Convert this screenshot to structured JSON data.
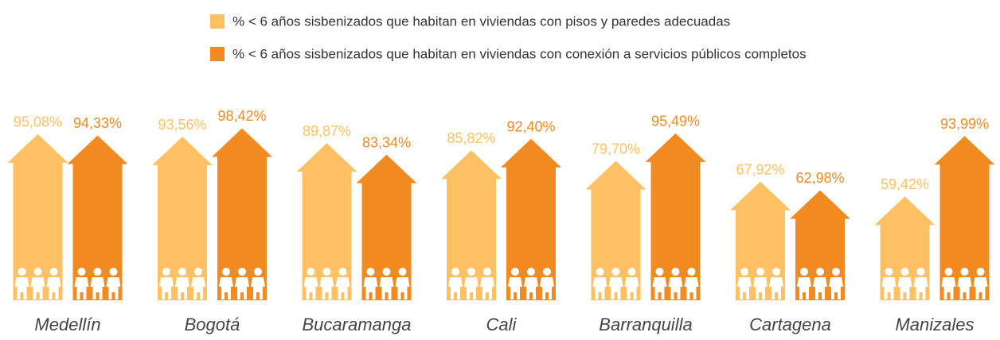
{
  "chart_data": {
    "type": "bar",
    "categories": [
      "Medellín",
      "Bogotá",
      "Bucaramanga",
      "Cali",
      "Barranquilla",
      "Cartagena",
      "Manizales"
    ],
    "series": [
      {
        "name": "% < 6 años sisbenizados que habitan en viviendas con pisos y paredes adecuadas",
        "color": "#fdc163",
        "values": [
          95.08,
          93.56,
          89.87,
          85.82,
          79.7,
          67.92,
          59.42
        ],
        "value_labels": [
          "95,08%",
          "93,56%",
          "89,87%",
          "85,82%",
          "79,70%",
          "67,92%",
          "59,42%"
        ]
      },
      {
        "name": "% < 6 años sisbenizados que habitan en viviendas con conexión a servicios públicos completos",
        "color": "#f28a22",
        "values": [
          94.33,
          98.42,
          83.34,
          92.4,
          95.49,
          62.98,
          93.99
        ],
        "value_labels": [
          "94,33%",
          "98,42%",
          "83,34%",
          "92,40%",
          "95,49%",
          "62,98%",
          "93,99%"
        ]
      }
    ]
  }
}
